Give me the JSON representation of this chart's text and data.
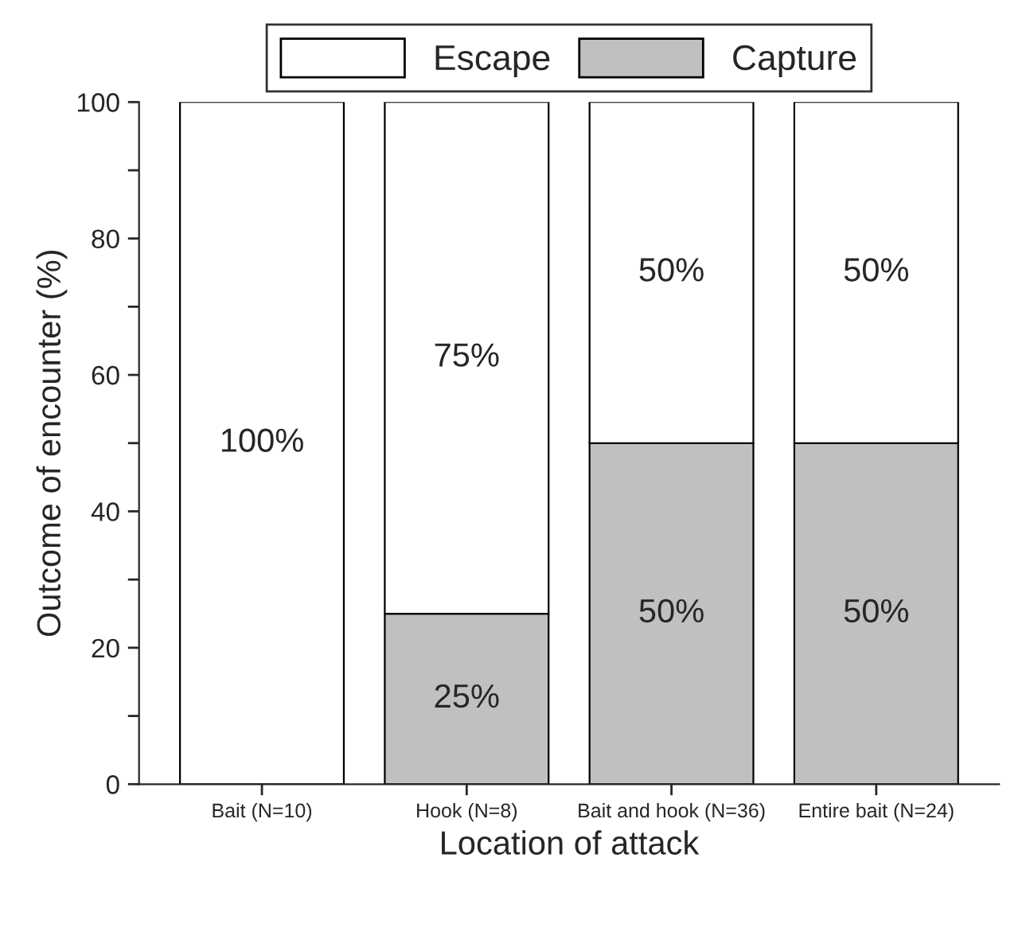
{
  "chart_data": {
    "type": "bar",
    "stacked": true,
    "xlabel": "Location of attack",
    "ylabel": "Outcome of encounter (%)",
    "categories": [
      "Bait (N=10)",
      "Hook (N=8)",
      "Bait and hook (N=36)",
      "Entire bait (N=24)"
    ],
    "series": [
      {
        "name": "Capture",
        "color": "#c0c0c0",
        "values": [
          0,
          25,
          50,
          50
        ],
        "value_labels": [
          null,
          "25%",
          "50%",
          "50%"
        ]
      },
      {
        "name": "Escape",
        "color": "#ffffff",
        "values": [
          100,
          75,
          50,
          50
        ],
        "value_labels": [
          "100%",
          "75%",
          "50%",
          "50%"
        ]
      }
    ],
    "ylim": [
      0,
      100
    ],
    "yticks": [
      0,
      {
        "value": 10,
        "label": null
      },
      20,
      {
        "value": 30,
        "label": null
      },
      40,
      {
        "value": 50,
        "label": null
      },
      60,
      {
        "value": 70,
        "label": null
      },
      80,
      {
        "value": 90,
        "label": null
      },
      100
    ],
    "grid": false,
    "legend": "top"
  }
}
